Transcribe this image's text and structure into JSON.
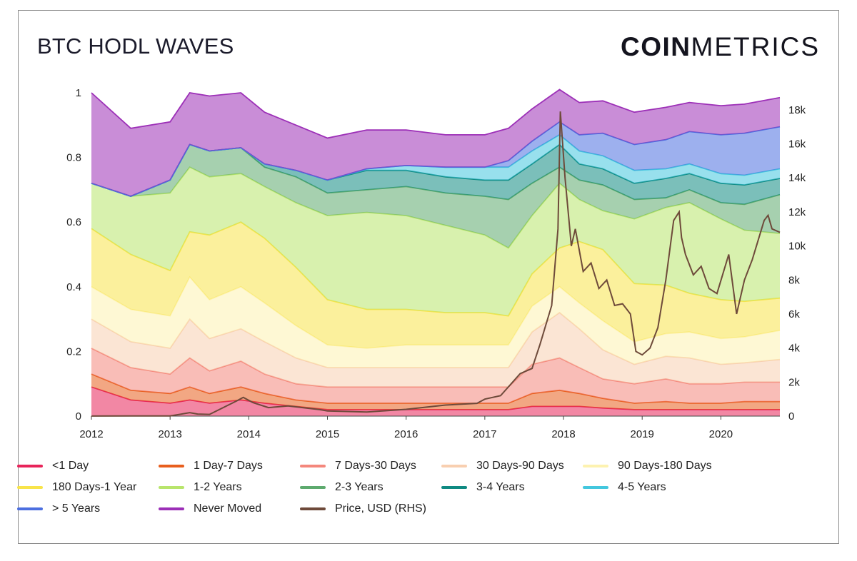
{
  "header": {
    "title": "BTC HODL WAVES",
    "brand_bold": "COIN",
    "brand_light": "METRICS"
  },
  "chart_data": {
    "type": "area",
    "stacked": true,
    "title": "BTC HODL WAVES",
    "x": [
      2012.0,
      2012.5,
      2013.0,
      2013.25,
      2013.5,
      2013.9,
      2014.2,
      2014.6,
      2015.0,
      2015.5,
      2016.0,
      2016.5,
      2017.0,
      2017.3,
      2017.6,
      2017.95,
      2018.2,
      2018.5,
      2018.9,
      2019.3,
      2019.6,
      2020.0,
      2020.3,
      2020.75
    ],
    "series": [
      {
        "name": "<1 Day",
        "color": "#e8245a",
        "values": [
          0.09,
          0.05,
          0.04,
          0.05,
          0.04,
          0.05,
          0.04,
          0.03,
          0.02,
          0.02,
          0.02,
          0.02,
          0.02,
          0.02,
          0.03,
          0.03,
          0.03,
          0.025,
          0.02,
          0.02,
          0.02,
          0.02,
          0.02,
          0.02
        ]
      },
      {
        "name": "1 Day-7 Days",
        "color": "#e85f1e",
        "values": [
          0.04,
          0.03,
          0.03,
          0.04,
          0.03,
          0.04,
          0.03,
          0.02,
          0.02,
          0.02,
          0.02,
          0.02,
          0.02,
          0.02,
          0.04,
          0.05,
          0.04,
          0.03,
          0.02,
          0.025,
          0.02,
          0.02,
          0.025,
          0.025
        ]
      },
      {
        "name": "7 Days-30 Days",
        "color": "#f4877c",
        "values": [
          0.08,
          0.07,
          0.06,
          0.09,
          0.07,
          0.08,
          0.06,
          0.05,
          0.05,
          0.05,
          0.05,
          0.05,
          0.05,
          0.05,
          0.09,
          0.1,
          0.08,
          0.06,
          0.06,
          0.07,
          0.06,
          0.06,
          0.06,
          0.06
        ]
      },
      {
        "name": "30 Days-90 Days",
        "color": "#f8cfb0",
        "values": [
          0.09,
          0.08,
          0.08,
          0.12,
          0.1,
          0.1,
          0.1,
          0.08,
          0.06,
          0.06,
          0.06,
          0.06,
          0.06,
          0.06,
          0.1,
          0.14,
          0.12,
          0.09,
          0.06,
          0.07,
          0.08,
          0.06,
          0.06,
          0.07
        ]
      },
      {
        "name": "90 Days-180 Days",
        "color": "#fdf2b0",
        "values": [
          0.1,
          0.1,
          0.1,
          0.13,
          0.12,
          0.13,
          0.12,
          0.1,
          0.07,
          0.06,
          0.07,
          0.07,
          0.07,
          0.07,
          0.08,
          0.08,
          0.08,
          0.09,
          0.07,
          0.07,
          0.08,
          0.08,
          0.08,
          0.09
        ]
      },
      {
        "name": "180 Days-1 Year",
        "color": "#f8e44a",
        "values": [
          0.18,
          0.17,
          0.14,
          0.14,
          0.2,
          0.2,
          0.2,
          0.18,
          0.14,
          0.12,
          0.11,
          0.1,
          0.1,
          0.09,
          0.1,
          0.12,
          0.19,
          0.22,
          0.18,
          0.15,
          0.12,
          0.12,
          0.11,
          0.1
        ]
      },
      {
        "name": "1-2 Years",
        "color": "#b8e56c",
        "values": [
          0.14,
          0.18,
          0.24,
          0.2,
          0.18,
          0.15,
          0.16,
          0.2,
          0.26,
          0.3,
          0.29,
          0.27,
          0.24,
          0.21,
          0.18,
          0.2,
          0.13,
          0.12,
          0.2,
          0.24,
          0.28,
          0.25,
          0.22,
          0.2
        ]
      },
      {
        "name": "2-3 Years",
        "color": "#5daa6e",
        "values": [
          0.0,
          0.0,
          0.04,
          0.07,
          0.08,
          0.08,
          0.06,
          0.08,
          0.07,
          0.07,
          0.09,
          0.1,
          0.12,
          0.15,
          0.1,
          0.05,
          0.06,
          0.08,
          0.06,
          0.03,
          0.04,
          0.05,
          0.08,
          0.12
        ]
      },
      {
        "name": "3-4 Years",
        "color": "#0f8a82",
        "values": [
          0.0,
          0.0,
          0.0,
          0.0,
          0.0,
          0.0,
          0.01,
          0.02,
          0.04,
          0.06,
          0.05,
          0.05,
          0.05,
          0.06,
          0.06,
          0.07,
          0.05,
          0.05,
          0.05,
          0.06,
          0.05,
          0.06,
          0.06,
          0.05
        ]
      },
      {
        "name": "4-5 Years",
        "color": "#43c7de",
        "values": [
          0.0,
          0.0,
          0.0,
          0.0,
          0.0,
          0.0,
          0.0,
          0.0,
          0.0,
          0.005,
          0.015,
          0.03,
          0.04,
          0.04,
          0.04,
          0.03,
          0.04,
          0.04,
          0.04,
          0.03,
          0.03,
          0.03,
          0.03,
          0.03
        ]
      },
      {
        "name": "> 5 Years",
        "color": "#4c6fe0",
        "values": [
          0.0,
          0.0,
          0.0,
          0.0,
          0.0,
          0.0,
          0.0,
          0.0,
          0.0,
          0.0,
          0.0,
          0.0,
          0.0,
          0.02,
          0.03,
          0.04,
          0.05,
          0.07,
          0.08,
          0.09,
          0.1,
          0.12,
          0.13,
          0.13
        ]
      },
      {
        "name": "Never Moved",
        "color": "#9c2fb7",
        "values": [
          0.28,
          0.21,
          0.18,
          0.16,
          0.17,
          0.17,
          0.16,
          0.14,
          0.13,
          0.12,
          0.11,
          0.1,
          0.1,
          0.1,
          0.1,
          0.1,
          0.1,
          0.1,
          0.1,
          0.1,
          0.09,
          0.09,
          0.09,
          0.09
        ]
      }
    ],
    "price": {
      "name": "Price, USD (RHS)",
      "color": "#6e4a3a",
      "x": [
        2012.0,
        2012.5,
        2013.0,
        2013.25,
        2013.35,
        2013.5,
        2013.85,
        2013.93,
        2014.05,
        2014.25,
        2014.5,
        2014.9,
        2015.0,
        2015.5,
        2016.0,
        2016.5,
        2016.9,
        2017.0,
        2017.2,
        2017.45,
        2017.6,
        2017.7,
        2017.85,
        2017.93,
        2017.96,
        2018.02,
        2018.1,
        2018.15,
        2018.25,
        2018.35,
        2018.45,
        2018.55,
        2018.65,
        2018.75,
        2018.85,
        2018.92,
        2019.0,
        2019.1,
        2019.2,
        2019.3,
        2019.4,
        2019.47,
        2019.5,
        2019.55,
        2019.65,
        2019.75,
        2019.85,
        2019.95,
        2020.1,
        2020.2,
        2020.3,
        2020.4,
        2020.55,
        2020.6,
        2020.65,
        2020.75
      ],
      "values": [
        5,
        7,
        13,
        200,
        120,
        100,
        900,
        1100,
        800,
        500,
        600,
        380,
        300,
        240,
        400,
        650,
        750,
        1000,
        1200,
        2500,
        2800,
        4200,
        6500,
        11000,
        17900,
        14000,
        10000,
        11000,
        8500,
        9000,
        7500,
        8000,
        6500,
        6600,
        6000,
        3800,
        3600,
        4000,
        5200,
        8000,
        11500,
        12000,
        10500,
        9500,
        8300,
        8800,
        7500,
        7200,
        9500,
        6000,
        8000,
        9200,
        11500,
        11800,
        11000,
        10800
      ]
    },
    "y_left": {
      "min": 0,
      "max": 1,
      "ticks": [
        0,
        0.2,
        0.4,
        0.6,
        0.8,
        1
      ],
      "tick_labels": [
        "0",
        "0.2",
        "0.4",
        "0.6",
        "0.8",
        "1"
      ]
    },
    "y_right": {
      "min": 0,
      "max": 19000,
      "ticks": [
        0,
        2000,
        4000,
        6000,
        8000,
        10000,
        12000,
        14000,
        16000,
        18000
      ],
      "tick_labels": [
        "0",
        "2k",
        "4k",
        "6k",
        "8k",
        "10k",
        "12k",
        "14k",
        "16k",
        "18k"
      ]
    },
    "x_axis": {
      "min": 2012,
      "max": 2020.75,
      "ticks": [
        2012,
        2013,
        2014,
        2015,
        2016,
        2017,
        2018,
        2019,
        2020
      ],
      "tick_labels": [
        "2012",
        "2013",
        "2014",
        "2015",
        "2016",
        "2017",
        "2018",
        "2019",
        "2020"
      ]
    },
    "legend_position": "bottom"
  },
  "legend": [
    {
      "label": "<1 Day",
      "color": "#e8245a"
    },
    {
      "label": "1 Day-7 Days",
      "color": "#e85f1e"
    },
    {
      "label": "7 Days-30 Days",
      "color": "#f4877c"
    },
    {
      "label": "30 Days-90 Days",
      "color": "#f8cfb0"
    },
    {
      "label": "90 Days-180 Days",
      "color": "#fdf2b0"
    },
    {
      "label": "180 Days-1 Year",
      "color": "#f8e44a"
    },
    {
      "label": "1-2 Years",
      "color": "#b8e56c"
    },
    {
      "label": "2-3 Years",
      "color": "#5daa6e"
    },
    {
      "label": "3-4 Years",
      "color": "#0f8a82"
    },
    {
      "label": "4-5 Years",
      "color": "#43c7de"
    },
    {
      "label": "> 5 Years",
      "color": "#4c6fe0"
    },
    {
      "label": "Never Moved",
      "color": "#9c2fb7"
    },
    {
      "label": "Price, USD (RHS)",
      "color": "#6e4a3a"
    }
  ]
}
